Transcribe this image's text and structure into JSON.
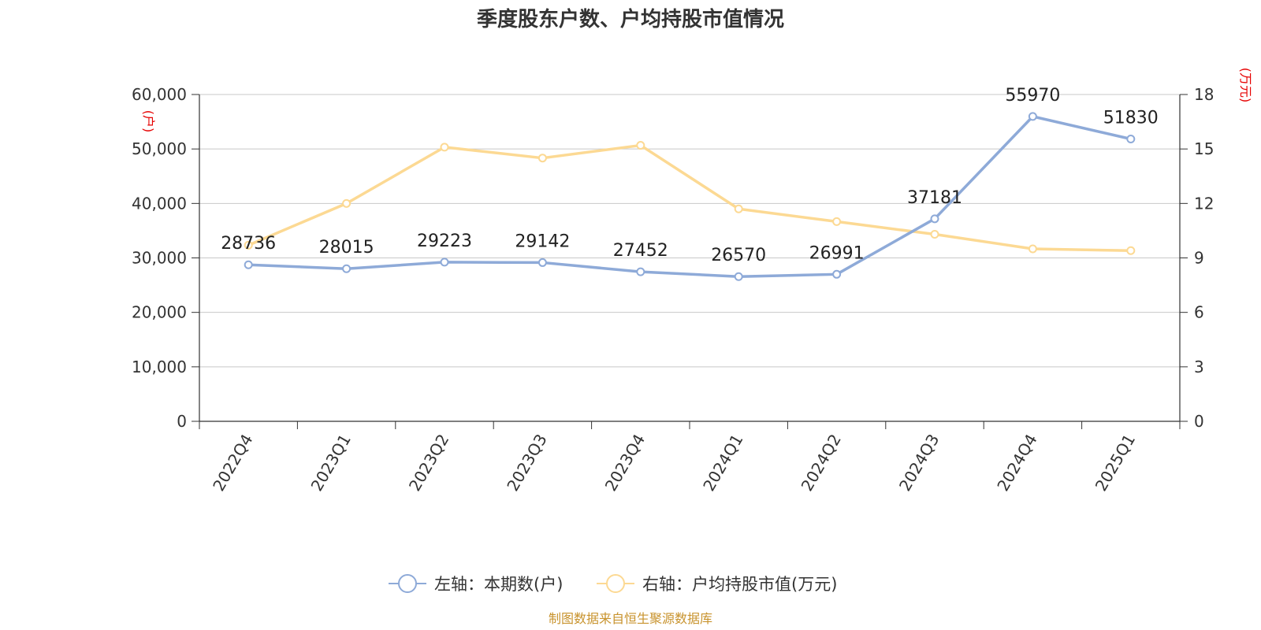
{
  "title": "季度股东户数、户均持股市值情况",
  "source": "制图数据来自恒生聚源数据库",
  "chart_data": {
    "type": "line",
    "categories": [
      "2022Q4",
      "2023Q1",
      "2023Q2",
      "2023Q3",
      "2023Q4",
      "2024Q1",
      "2024Q2",
      "2024Q3",
      "2024Q4",
      "2025Q1"
    ],
    "left_axis": {
      "unit": "(户)",
      "ticks": [
        "0",
        "10,000",
        "20,000",
        "30,000",
        "40,000",
        "50,000",
        "60,000"
      ],
      "ylim": [
        0,
        60000
      ]
    },
    "right_axis": {
      "unit": "(万元)",
      "ticks": [
        "0",
        "3",
        "6",
        "9",
        "12",
        "15",
        "18"
      ],
      "ylim": [
        0,
        18
      ]
    },
    "series": [
      {
        "name": "左轴：本期数(户)",
        "axis": "left",
        "color": "#8eaad8",
        "values": [
          28736,
          28015,
          29223,
          29142,
          27452,
          26570,
          26991,
          37181,
          55970,
          51830
        ],
        "labels": [
          "28736",
          "28015",
          "29223",
          "29142",
          "27452",
          "26570",
          "26991",
          "37181",
          "55970",
          "51830"
        ]
      },
      {
        "name": "右轴：户均持股市值(万元)",
        "axis": "right",
        "color": "#fcd993",
        "values": [
          9.7,
          12.0,
          15.1,
          14.5,
          15.2,
          11.7,
          11.0,
          10.3,
          9.5,
          9.4
        ]
      }
    ],
    "grid": true,
    "legend_position": "bottom-center"
  }
}
